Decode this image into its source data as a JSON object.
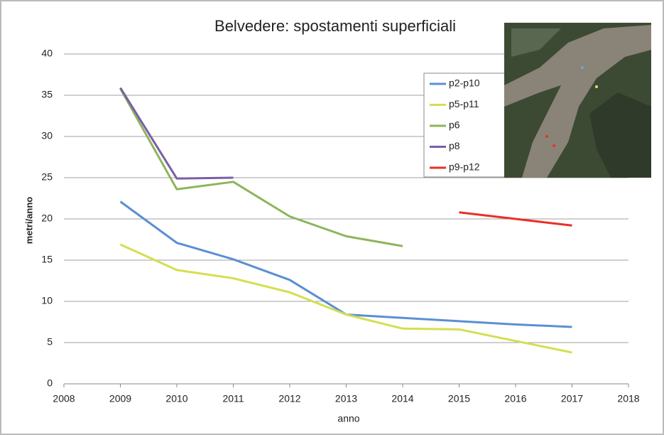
{
  "chart_data": {
    "type": "line",
    "title": "Belvedere: spostamenti superficiali",
    "x_label": "anno",
    "y_label": "metri/anno",
    "x": [
      2009,
      2010,
      2011,
      2012,
      2013,
      2014,
      2015,
      2016,
      2017
    ],
    "series": [
      {
        "name": "p2-p10",
        "color": "#5b8fd4",
        "values": [
          22.1,
          17.1,
          15.1,
          12.6,
          8.4,
          8.0,
          7.6,
          7.2,
          6.9
        ]
      },
      {
        "name": "p5-p11",
        "color": "#d4df4f",
        "values": [
          16.9,
          13.8,
          12.8,
          11.1,
          8.4,
          6.7,
          6.6,
          5.2,
          3.8
        ]
      },
      {
        "name": "p6",
        "color": "#8db55a",
        "values": [
          35.8,
          23.6,
          24.5,
          20.3,
          17.9,
          16.7,
          null,
          null,
          null
        ]
      },
      {
        "name": "p8",
        "color": "#7b5ea7",
        "values": [
          35.9,
          24.9,
          25.0,
          null,
          null,
          null,
          null,
          null,
          null
        ]
      },
      {
        "name": "p9-p12",
        "color": "#e8302a",
        "values": [
          null,
          null,
          null,
          null,
          null,
          null,
          20.8,
          20.0,
          19.2
        ]
      }
    ],
    "xlim": [
      2008,
      2018
    ],
    "xticks": [
      2008,
      2009,
      2010,
      2011,
      2012,
      2013,
      2014,
      2015,
      2016,
      2017,
      2018
    ],
    "ylim": [
      0,
      40
    ],
    "yticks": [
      0,
      5,
      10,
      15,
      20,
      25,
      30,
      35,
      40
    ],
    "grid": true
  }
}
